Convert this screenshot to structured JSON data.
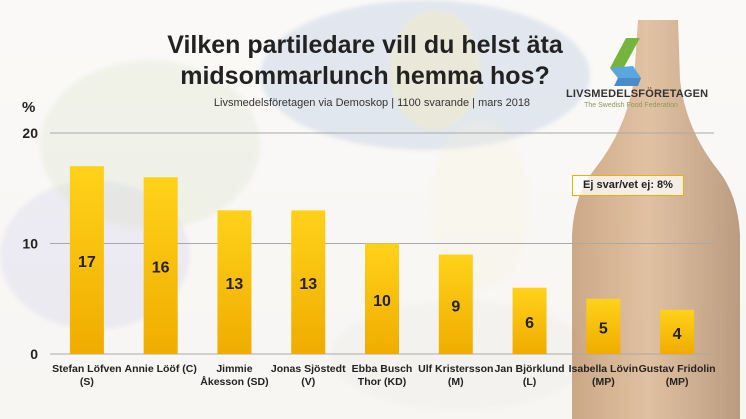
{
  "logo": {
    "name": "LIVSMEDELSFÖRETAGEN",
    "tagline": "The Swedish Food Federation"
  },
  "chart_data": {
    "type": "bar",
    "title": "Vilken partiledare vill du helst äta\nmidsommarlunch hemma hos?",
    "subtitle": "Livsmedelsföretagen via Demoskop | 1100 svarande | mars 2018",
    "ylabel": "%",
    "xlabel": "",
    "ylim": [
      0,
      20
    ],
    "yticks": [
      0,
      10,
      20
    ],
    "grid": true,
    "categories": [
      [
        "Stefan Löfven",
        "(S)"
      ],
      [
        "Annie Lööf (C)"
      ],
      [
        "Jimmie",
        "Åkesson (SD)"
      ],
      [
        "Jonas Sjöstedt",
        "(V)"
      ],
      [
        "Ebba Busch",
        "Thor (KD)"
      ],
      [
        "Ulf Kristersson",
        "(M)"
      ],
      [
        "Jan Björklund",
        "(L)"
      ],
      [
        "Isabella Lövin",
        "(MP)"
      ],
      [
        "Gustav Fridolin",
        "(MP)"
      ]
    ],
    "values": [
      17,
      16,
      13,
      13,
      10,
      9,
      6,
      5,
      4
    ],
    "annotation": "Ej svar/vet ej: 8%",
    "colors": {
      "bar_top": "#ffd21a",
      "bar_bottom": "#f0ac00",
      "grid": "#a9a9a9",
      "label": "#222222"
    }
  }
}
